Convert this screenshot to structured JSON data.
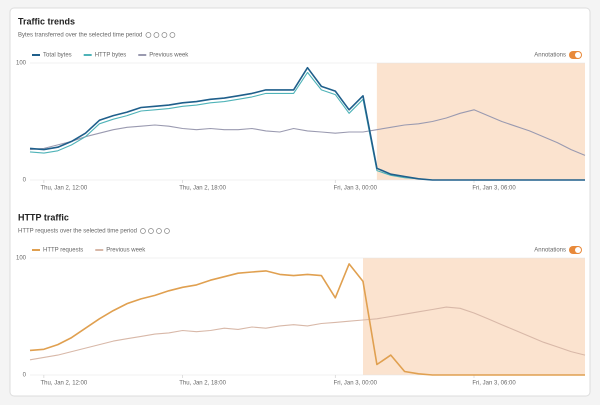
{
  "chart_data": [
    {
      "type": "line",
      "title": "Traffic trends",
      "subtitle": "Bytes transferred over the selected time period",
      "annotations_label": "Annotations",
      "x": [
        0,
        1,
        2,
        3,
        4,
        5,
        6,
        7,
        8,
        9,
        10,
        11,
        12,
        13,
        14,
        15,
        16,
        17,
        18,
        19,
        20,
        21,
        22,
        23,
        24,
        25,
        26,
        27,
        28,
        29,
        30,
        31,
        32,
        33,
        34,
        35,
        36,
        37,
        38,
        39,
        40
      ],
      "series": [
        {
          "name": "Total bytes",
          "color": "#1f5f8b",
          "values": [
            27,
            26,
            28,
            33,
            40,
            51,
            55,
            58,
            62,
            63,
            64,
            66,
            67,
            69,
            70,
            72,
            74,
            77,
            77,
            77,
            96,
            80,
            76,
            60,
            72,
            10,
            5,
            3,
            1,
            0,
            0,
            0,
            0,
            0,
            0,
            0,
            0,
            0,
            0,
            0,
            0
          ]
        },
        {
          "name": "HTTP bytes",
          "color": "#4fb3b8",
          "values": [
            24,
            23,
            25,
            30,
            37,
            48,
            52,
            55,
            59,
            60,
            61,
            63,
            64,
            66,
            67,
            69,
            71,
            74,
            74,
            74,
            92,
            77,
            73,
            57,
            69,
            8,
            4,
            2,
            1,
            0,
            0,
            0,
            0,
            0,
            0,
            0,
            0,
            0,
            0,
            0,
            0
          ]
        },
        {
          "name": "Previous week",
          "color": "#9a9ab0",
          "values": [
            26,
            27,
            30,
            33,
            37,
            40,
            43,
            45,
            46,
            47,
            46,
            44,
            43,
            44,
            43,
            43,
            44,
            42,
            41,
            44,
            42,
            41,
            40,
            41,
            41,
            43,
            45,
            47,
            48,
            50,
            53,
            57,
            60,
            55,
            50,
            46,
            42,
            37,
            32,
            26,
            21
          ]
        }
      ],
      "highlight": [
        25,
        40
      ],
      "highlight_color": "#fbe3cf",
      "xlim": [
        0,
        40
      ],
      "ylim": [
        0,
        100
      ],
      "yticks": [
        0,
        100
      ],
      "xticks": [
        {
          "value": 1,
          "label": "Thu, Jan 2, 12:00"
        },
        {
          "value": 11,
          "label": "Thu, Jan 2, 18:00"
        },
        {
          "value": 22,
          "label": "Fri, Jan 3, 00:00"
        },
        {
          "value": 32,
          "label": "Fri, Jan 3, 06:00"
        }
      ]
    },
    {
      "type": "line",
      "title": "HTTP traffic",
      "subtitle": "HTTP requests over the selected time period",
      "annotations_label": "Annotations",
      "x": [
        0,
        1,
        2,
        3,
        4,
        5,
        6,
        7,
        8,
        9,
        10,
        11,
        12,
        13,
        14,
        15,
        16,
        17,
        18,
        19,
        20,
        21,
        22,
        23,
        24,
        25,
        26,
        27,
        28,
        29,
        30,
        31,
        32,
        33,
        34,
        35,
        36,
        37,
        38,
        39,
        40
      ],
      "series": [
        {
          "name": "HTTP requests",
          "color": "#e0a050",
          "values": [
            21,
            22,
            26,
            32,
            40,
            48,
            55,
            61,
            65,
            68,
            72,
            75,
            77,
            81,
            84,
            87,
            88,
            89,
            86,
            85,
            86,
            85,
            66,
            95,
            80,
            9,
            17,
            3,
            1,
            0,
            0,
            0,
            0,
            0,
            0,
            0,
            0,
            0,
            0,
            0,
            0
          ]
        },
        {
          "name": "Previous week",
          "color": "#d8b8a8",
          "values": [
            13,
            15,
            17,
            20,
            23,
            26,
            29,
            31,
            33,
            35,
            36,
            38,
            37,
            38,
            40,
            39,
            41,
            40,
            42,
            43,
            42,
            44,
            45,
            46,
            47,
            48,
            50,
            52,
            54,
            56,
            58,
            57,
            53,
            48,
            43,
            38,
            33,
            28,
            24,
            20,
            17
          ]
        }
      ],
      "highlight": [
        24,
        40
      ],
      "highlight_color": "#fbe3cf",
      "xlim": [
        0,
        40
      ],
      "ylim": [
        0,
        100
      ],
      "yticks": [
        0,
        100
      ],
      "xticks": [
        {
          "value": 1,
          "label": "Thu, Jan 2, 12:00"
        },
        {
          "value": 11,
          "label": "Thu, Jan 2, 18:00"
        },
        {
          "value": 22,
          "label": "Fri, Jan 3, 00:00"
        },
        {
          "value": 32,
          "label": "Fri, Jan 3, 06:00"
        }
      ]
    }
  ]
}
